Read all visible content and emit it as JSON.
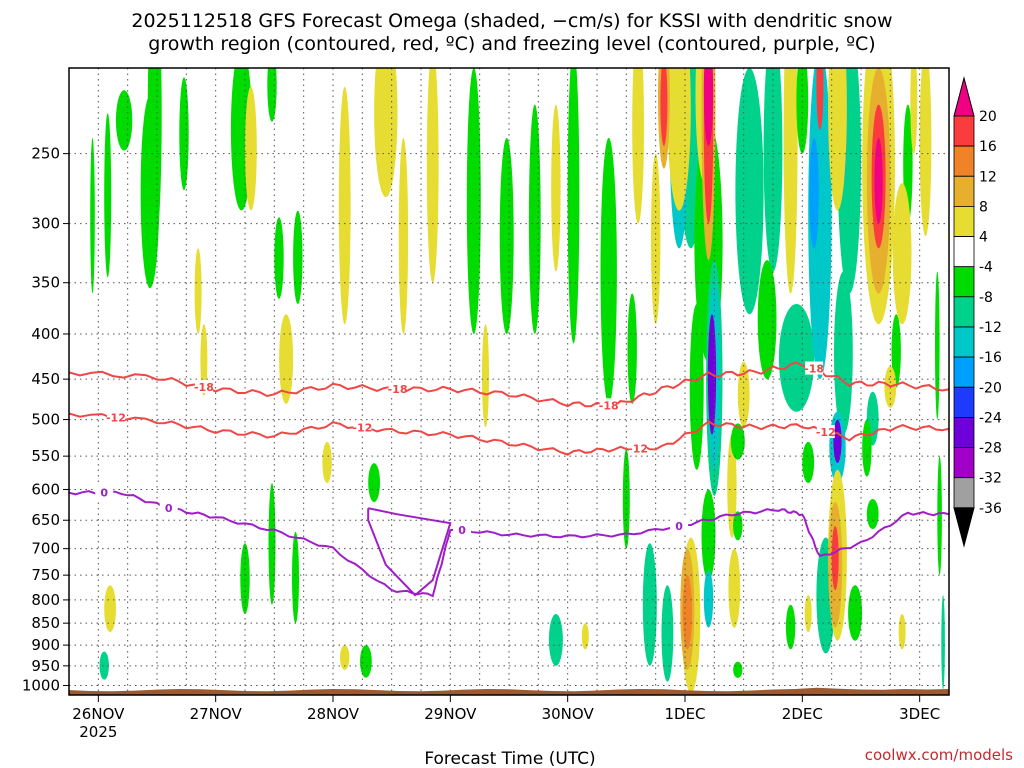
{
  "chart_data": {
    "type": "heatmap",
    "title_line1": "2025112518 GFS Forecast Omega (shaded, −cm/s) for KSSI with dendritic snow",
    "title_line2": "growth region (contoured, red, ºC) and freezing level (contoured, purple, ºC)",
    "xlabel": "Forecast Time (UTC)",
    "ylabel": "",
    "credit": "coolwx.com/models",
    "x_axis": {
      "range_days": [
        -0.25,
        7.25
      ],
      "ticks": [
        {
          "day": 0,
          "label": "26NOV",
          "sublabel": "2025"
        },
        {
          "day": 1,
          "label": "27NOV",
          "sublabel": ""
        },
        {
          "day": 2,
          "label": "28NOV",
          "sublabel": ""
        },
        {
          "day": 3,
          "label": "29NOV",
          "sublabel": ""
        },
        {
          "day": 4,
          "label": "30NOV",
          "sublabel": ""
        },
        {
          "day": 5,
          "label": "1DEC",
          "sublabel": ""
        },
        {
          "day": 6,
          "label": "2DEC",
          "sublabel": ""
        },
        {
          "day": 7,
          "label": "3DEC",
          "sublabel": ""
        }
      ]
    },
    "y_axis": {
      "unit": "hPa",
      "scale": "log-pressure",
      "range": [
        1025,
        200
      ],
      "ticks": [
        250,
        300,
        350,
        400,
        450,
        500,
        550,
        600,
        650,
        700,
        750,
        800,
        850,
        900,
        950,
        1000
      ]
    },
    "grid": true,
    "colorbar": {
      "unit": "-cm/s",
      "levels": [
        -36,
        -32,
        -28,
        -24,
        -20,
        -16,
        -12,
        -8,
        -4,
        4,
        8,
        12,
        16,
        20
      ],
      "colors": [
        "#000000",
        "#a0a0a0",
        "#a000c8",
        "#6e00dc",
        "#1e3cff",
        "#00a0ff",
        "#00c8c8",
        "#00d28c",
        "#00dc00",
        "#ffffff",
        "#e6dc32",
        "#e6af2d",
        "#f08228",
        "#fa3c3c",
        "#f00082"
      ],
      "ends": "triangles"
    },
    "omega_blobs": [
      {
        "day": 0.22,
        "p": 230,
        "dx": 0.07,
        "dp": 18,
        "cat": "g1"
      },
      {
        "day": 0.47,
        "p": 230,
        "dx": 0.05,
        "dp": 15,
        "cat": "g1"
      },
      {
        "day": 0.48,
        "p": 240,
        "dx": 0.06,
        "dp": 80,
        "cat": "g1"
      },
      {
        "day": 0.73,
        "p": 240,
        "dx": 0.04,
        "dp": 35,
        "cat": "g1"
      },
      {
        "day": 0.44,
        "p": 285,
        "dx": 0.08,
        "dp": 70,
        "cat": "g1"
      },
      {
        "day": 1.22,
        "p": 240,
        "dx": 0.09,
        "dp": 50,
        "cat": "g1"
      },
      {
        "day": 1.48,
        "p": 210,
        "dx": 0.04,
        "dp": 20,
        "cat": "g1"
      },
      {
        "day": 1.54,
        "p": 330,
        "dx": 0.04,
        "dp": 35,
        "cat": "g1"
      },
      {
        "day": 1.7,
        "p": 330,
        "dx": 0.04,
        "dp": 40,
        "cat": "g1"
      },
      {
        "day": 0.08,
        "p": 285,
        "dx": 0.03,
        "dp": 60,
        "cat": "g1"
      },
      {
        "day": 1.6,
        "p": 430,
        "dx": 0.06,
        "dp": 50,
        "cat": "y1"
      },
      {
        "day": 1.25,
        "p": 760,
        "dx": 0.04,
        "dp": 70,
        "cat": "g1"
      },
      {
        "day": 1.48,
        "p": 700,
        "dx": 0.03,
        "dp": 110,
        "cat": "g1"
      },
      {
        "day": 1.68,
        "p": 760,
        "dx": 0.03,
        "dp": 90,
        "cat": "g1"
      },
      {
        "day": 0.05,
        "p": 950,
        "dx": 0.04,
        "dp": 35,
        "cat": "g2"
      },
      {
        "day": -0.05,
        "p": 300,
        "dx": 0.02,
        "dp": 60,
        "cat": "g1"
      },
      {
        "day": 2.35,
        "p": 590,
        "dx": 0.05,
        "dp": 30,
        "cat": "g1"
      },
      {
        "day": 2.28,
        "p": 940,
        "dx": 0.05,
        "dp": 40,
        "cat": "g1"
      },
      {
        "day": 3.2,
        "p": 300,
        "dx": 0.06,
        "dp": 100,
        "cat": "g1"
      },
      {
        "day": 3.48,
        "p": 320,
        "dx": 0.06,
        "dp": 80,
        "cat": "g1"
      },
      {
        "day": 3.72,
        "p": 310,
        "dx": 0.05,
        "dp": 90,
        "cat": "g1"
      },
      {
        "day": 4.05,
        "p": 300,
        "dx": 0.05,
        "dp": 110,
        "cat": "g1"
      },
      {
        "day": 4.35,
        "p": 360,
        "dx": 0.07,
        "dp": 120,
        "cat": "g1"
      },
      {
        "day": 4.55,
        "p": 420,
        "dx": 0.04,
        "dp": 60,
        "cat": "g1"
      },
      {
        "day": 4.7,
        "p": 820,
        "dx": 0.06,
        "dp": 130,
        "cat": "g2"
      },
      {
        "day": 4.85,
        "p": 880,
        "dx": 0.05,
        "dp": 110,
        "cat": "g2"
      },
      {
        "day": 3.9,
        "p": 890,
        "dx": 0.06,
        "dp": 60,
        "cat": "g2"
      },
      {
        "day": 4.5,
        "p": 620,
        "dx": 0.03,
        "dp": 80,
        "cat": "g1"
      },
      {
        "day": 0.85,
        "p": 360,
        "dx": 0.03,
        "dp": 40,
        "cat": "y1"
      },
      {
        "day": 0.9,
        "p": 430,
        "dx": 0.03,
        "dp": 40,
        "cat": "y1"
      },
      {
        "day": 1.3,
        "p": 250,
        "dx": 0.05,
        "dp": 40,
        "cat": "y1"
      },
      {
        "day": 2.1,
        "p": 300,
        "dx": 0.05,
        "dp": 90,
        "cat": "y1"
      },
      {
        "day": 2.45,
        "p": 230,
        "dx": 0.1,
        "dp": 50,
        "cat": "y1"
      },
      {
        "day": 2.6,
        "p": 320,
        "dx": 0.04,
        "dp": 80,
        "cat": "y1"
      },
      {
        "day": 2.85,
        "p": 270,
        "dx": 0.05,
        "dp": 80,
        "cat": "y1"
      },
      {
        "day": 3.3,
        "p": 450,
        "dx": 0.03,
        "dp": 60,
        "cat": "y1"
      },
      {
        "day": 3.9,
        "p": 280,
        "dx": 0.04,
        "dp": 60,
        "cat": "y1"
      },
      {
        "day": 4.6,
        "p": 240,
        "dx": 0.05,
        "dp": 60,
        "cat": "y1"
      },
      {
        "day": 4.75,
        "p": 320,
        "dx": 0.04,
        "dp": 70,
        "cat": "y1"
      },
      {
        "day": 0.1,
        "p": 820,
        "dx": 0.05,
        "dp": 50,
        "cat": "y1"
      },
      {
        "day": 1.95,
        "p": 560,
        "dx": 0.04,
        "dp": 30,
        "cat": "y1"
      },
      {
        "day": 2.1,
        "p": 930,
        "dx": 0.04,
        "dp": 30,
        "cat": "y1"
      },
      {
        "day": 4.15,
        "p": 880,
        "dx": 0.03,
        "dp": 30,
        "cat": "y1"
      },
      {
        "day": 5.1,
        "p": 200,
        "dx": 0.08,
        "dp": 45,
        "cat": "g1"
      },
      {
        "day": 5.05,
        "p": 230,
        "dx": 0.12,
        "dp": 90,
        "cat": "g2"
      },
      {
        "day": 5.2,
        "p": 330,
        "dx": 0.12,
        "dp": 100,
        "cat": "g1"
      },
      {
        "day": 5.1,
        "p": 470,
        "dx": 0.06,
        "dp": 100,
        "cat": "g1"
      },
      {
        "day": 4.95,
        "p": 250,
        "dx": 0.08,
        "dp": 70,
        "cat": "g3"
      },
      {
        "day": 5.25,
        "p": 470,
        "dx": 0.07,
        "dp": 140,
        "cat": "g2"
      },
      {
        "day": 5.25,
        "p": 460,
        "dx": 0.05,
        "dp": 110,
        "cat": "g3"
      },
      {
        "day": 5.23,
        "p": 450,
        "dx": 0.035,
        "dp": 70,
        "cat": "p1"
      },
      {
        "day": 5.2,
        "p": 680,
        "dx": 0.06,
        "dp": 80,
        "cat": "g1"
      },
      {
        "day": 5.2,
        "p": 800,
        "dx": 0.04,
        "dp": 60,
        "cat": "g3"
      },
      {
        "day": 5.4,
        "p": 600,
        "dx": 0.04,
        "dp": 80,
        "cat": "y1"
      },
      {
        "day": 5.5,
        "p": 470,
        "dx": 0.05,
        "dp": 40,
        "cat": "y1"
      },
      {
        "day": 5.45,
        "p": 530,
        "dx": 0.06,
        "dp": 25,
        "cat": "g1"
      },
      {
        "day": 5.45,
        "p": 660,
        "dx": 0.04,
        "dp": 25,
        "cat": "g1"
      },
      {
        "day": 5.45,
        "p": 960,
        "dx": 0.04,
        "dp": 20,
        "cat": "g1"
      },
      {
        "day": 5.55,
        "p": 290,
        "dx": 0.12,
        "dp": 90,
        "cat": "g2"
      },
      {
        "day": 5.75,
        "p": 260,
        "dx": 0.08,
        "dp": 80,
        "cat": "g2"
      },
      {
        "day": 5.7,
        "p": 390,
        "dx": 0.08,
        "dp": 60,
        "cat": "g1"
      },
      {
        "day": 5.9,
        "p": 260,
        "dx": 0.06,
        "dp": 100,
        "cat": "y1"
      },
      {
        "day": 5.95,
        "p": 430,
        "dx": 0.15,
        "dp": 60,
        "cat": "g2"
      },
      {
        "day": 6.15,
        "p": 320,
        "dx": 0.1,
        "dp": 130,
        "cat": "g3"
      },
      {
        "day": 6.1,
        "p": 280,
        "dx": 0.04,
        "dp": 40,
        "cat": "b1"
      },
      {
        "day": 6.4,
        "p": 270,
        "dx": 0.1,
        "dp": 90,
        "cat": "g2"
      },
      {
        "day": 6.35,
        "p": 430,
        "dx": 0.08,
        "dp": 90,
        "cat": "g2"
      },
      {
        "day": 6.3,
        "p": 540,
        "dx": 0.07,
        "dp": 50,
        "cat": "g3"
      },
      {
        "day": 6.3,
        "p": 530,
        "dx": 0.035,
        "dp": 30,
        "cat": "p1"
      },
      {
        "day": 6.05,
        "p": 560,
        "dx": 0.05,
        "dp": 30,
        "cat": "g1"
      },
      {
        "day": 6.6,
        "p": 500,
        "dx": 0.05,
        "dp": 35,
        "cat": "g2"
      },
      {
        "day": 6.55,
        "p": 540,
        "dx": 0.04,
        "dp": 40,
        "cat": "g1"
      },
      {
        "day": 6.3,
        "p": 210,
        "dx": 0.05,
        "dp": 25,
        "cat": "g2"
      },
      {
        "day": 6.35,
        "p": 230,
        "dx": 0.03,
        "dp": 40,
        "cat": "b1"
      },
      {
        "day": 6.0,
        "p": 220,
        "dx": 0.05,
        "dp": 30,
        "cat": "g1"
      },
      {
        "day": 6.8,
        "p": 420,
        "dx": 0.04,
        "dp": 40,
        "cat": "g1"
      },
      {
        "day": 7.15,
        "p": 420,
        "dx": 0.02,
        "dp": 80,
        "cat": "g1"
      },
      {
        "day": 7.17,
        "p": 650,
        "dx": 0.02,
        "dp": 100,
        "cat": "g1"
      },
      {
        "day": 7.2,
        "p": 900,
        "dx": 0.015,
        "dp": 110,
        "cat": "g2"
      },
      {
        "day": 6.9,
        "p": 260,
        "dx": 0.04,
        "dp": 40,
        "cat": "g1"
      },
      {
        "day": 6.2,
        "p": 800,
        "dx": 0.08,
        "dp": 120,
        "cat": "g2"
      },
      {
        "day": 6.45,
        "p": 830,
        "dx": 0.06,
        "dp": 60,
        "cat": "g1"
      },
      {
        "day": 5.9,
        "p": 860,
        "dx": 0.04,
        "dp": 50,
        "cat": "g1"
      },
      {
        "day": 6.6,
        "p": 640,
        "dx": 0.05,
        "dp": 25,
        "cat": "g1"
      },
      {
        "day": 5.05,
        "p": 850,
        "dx": 0.08,
        "dp": 170,
        "cat": "y1"
      },
      {
        "day": 5.02,
        "p": 830,
        "dx": 0.06,
        "dp": 130,
        "cat": "o1"
      },
      {
        "day": 5.02,
        "p": 830,
        "dx": 0.04,
        "dp": 80,
        "cat": "o2"
      },
      {
        "day": 4.95,
        "p": 230,
        "dx": 0.1,
        "dp": 60,
        "cat": "y1"
      },
      {
        "day": 5.17,
        "p": 220,
        "dx": 0.08,
        "dp": 50,
        "cat": "y1"
      },
      {
        "day": 5.2,
        "p": 240,
        "dx": 0.06,
        "dp": 90,
        "cat": "o1"
      },
      {
        "day": 5.2,
        "p": 240,
        "dx": 0.04,
        "dp": 60,
        "cat": "r1"
      },
      {
        "day": 5.2,
        "p": 215,
        "dx": 0.04,
        "dp": 30,
        "cat": "m1"
      },
      {
        "day": 4.82,
        "p": 220,
        "dx": 0.05,
        "dp": 40,
        "cat": "o1"
      },
      {
        "day": 4.82,
        "p": 220,
        "dx": 0.03,
        "dp": 25,
        "cat": "r1"
      },
      {
        "day": 5.42,
        "p": 780,
        "dx": 0.05,
        "dp": 80,
        "cat": "y1"
      },
      {
        "day": 6.3,
        "p": 230,
        "dx": 0.08,
        "dp": 60,
        "cat": "y1"
      },
      {
        "day": 6.15,
        "p": 210,
        "dx": 0.03,
        "dp": 25,
        "cat": "r1"
      },
      {
        "day": 6.65,
        "p": 280,
        "dx": 0.14,
        "dp": 110,
        "cat": "y1"
      },
      {
        "day": 6.65,
        "p": 280,
        "dx": 0.1,
        "dp": 80,
        "cat": "o1"
      },
      {
        "day": 6.65,
        "p": 270,
        "dx": 0.06,
        "dp": 50,
        "cat": "r1"
      },
      {
        "day": 6.65,
        "p": 270,
        "dx": 0.035,
        "dp": 30,
        "cat": "m1"
      },
      {
        "day": 6.85,
        "p": 330,
        "dx": 0.08,
        "dp": 60,
        "cat": "y1"
      },
      {
        "day": 7.05,
        "p": 250,
        "dx": 0.05,
        "dp": 60,
        "cat": "y1"
      },
      {
        "day": 6.95,
        "p": 220,
        "dx": 0.03,
        "dp": 30,
        "cat": "y1"
      },
      {
        "day": 6.3,
        "p": 730,
        "dx": 0.08,
        "dp": 160,
        "cat": "y1"
      },
      {
        "day": 6.28,
        "p": 740,
        "dx": 0.06,
        "dp": 120,
        "cat": "o1"
      },
      {
        "day": 6.28,
        "p": 720,
        "dx": 0.03,
        "dp": 60,
        "cat": "r1"
      },
      {
        "day": 6.85,
        "p": 870,
        "dx": 0.03,
        "dp": 40,
        "cat": "y1"
      },
      {
        "day": 6.05,
        "p": 830,
        "dx": 0.03,
        "dp": 40,
        "cat": "y1"
      },
      {
        "day": 6.75,
        "p": 460,
        "dx": 0.05,
        "dp": 25,
        "cat": "y1"
      }
    ],
    "dgz_contours": [
      {
        "label": "-18",
        "label_days": [
          0.9,
          2.55,
          4.35,
          6.1
        ],
        "points": [
          [
            -0.25,
            442
          ],
          [
            0.5,
            448
          ],
          [
            1.0,
            462
          ],
          [
            1.5,
            468
          ],
          [
            2.0,
            458
          ],
          [
            2.5,
            462
          ],
          [
            3.0,
            462
          ],
          [
            3.5,
            468
          ],
          [
            4.0,
            480
          ],
          [
            4.4,
            482
          ],
          [
            4.8,
            462
          ],
          [
            5.2,
            445
          ],
          [
            5.6,
            442
          ],
          [
            6.0,
            432
          ],
          [
            6.4,
            455
          ],
          [
            6.8,
            456
          ],
          [
            7.25,
            462
          ]
        ]
      },
      {
        "label": "-12",
        "label_days": [
          0.15,
          2.25,
          4.6,
          6.2
        ],
        "points": [
          [
            -0.25,
            492
          ],
          [
            0.5,
            502
          ],
          [
            1.0,
            515
          ],
          [
            1.5,
            522
          ],
          [
            2.0,
            506
          ],
          [
            2.5,
            515
          ],
          [
            3.0,
            520
          ],
          [
            3.5,
            532
          ],
          [
            4.0,
            545
          ],
          [
            4.4,
            540
          ],
          [
            4.8,
            538
          ],
          [
            5.2,
            505
          ],
          [
            5.6,
            510
          ],
          [
            6.0,
            508
          ],
          [
            6.4,
            525
          ],
          [
            6.8,
            510
          ],
          [
            7.25,
            512
          ]
        ]
      }
    ],
    "freezing_contour": {
      "label": "0",
      "label_days": [
        0.05,
        0.6,
        3.1,
        4.95
      ],
      "main": [
        [
          -0.25,
          605
        ],
        [
          0.2,
          605
        ],
        [
          0.6,
          630
        ],
        [
          1.0,
          645
        ],
        [
          1.5,
          668
        ],
        [
          2.0,
          700
        ],
        [
          2.5,
          780
        ],
        [
          2.85,
          790
        ],
        [
          3.0,
          665
        ],
        [
          3.5,
          675
        ],
        [
          4.0,
          678
        ],
        [
          4.5,
          675
        ],
        [
          5.0,
          658
        ],
        [
          5.4,
          640
        ],
        [
          5.8,
          632
        ],
        [
          6.0,
          640
        ],
        [
          6.15,
          715
        ],
        [
          6.5,
          690
        ],
        [
          6.9,
          638
        ],
        [
          7.25,
          640
        ]
      ],
      "loop": [
        [
          2.3,
          630
        ],
        [
          2.55,
          640
        ],
        [
          3.0,
          655
        ],
        [
          2.85,
          760
        ],
        [
          2.7,
          790
        ],
        [
          2.45,
          730
        ],
        [
          2.3,
          650
        ],
        [
          2.3,
          630
        ]
      ]
    }
  }
}
